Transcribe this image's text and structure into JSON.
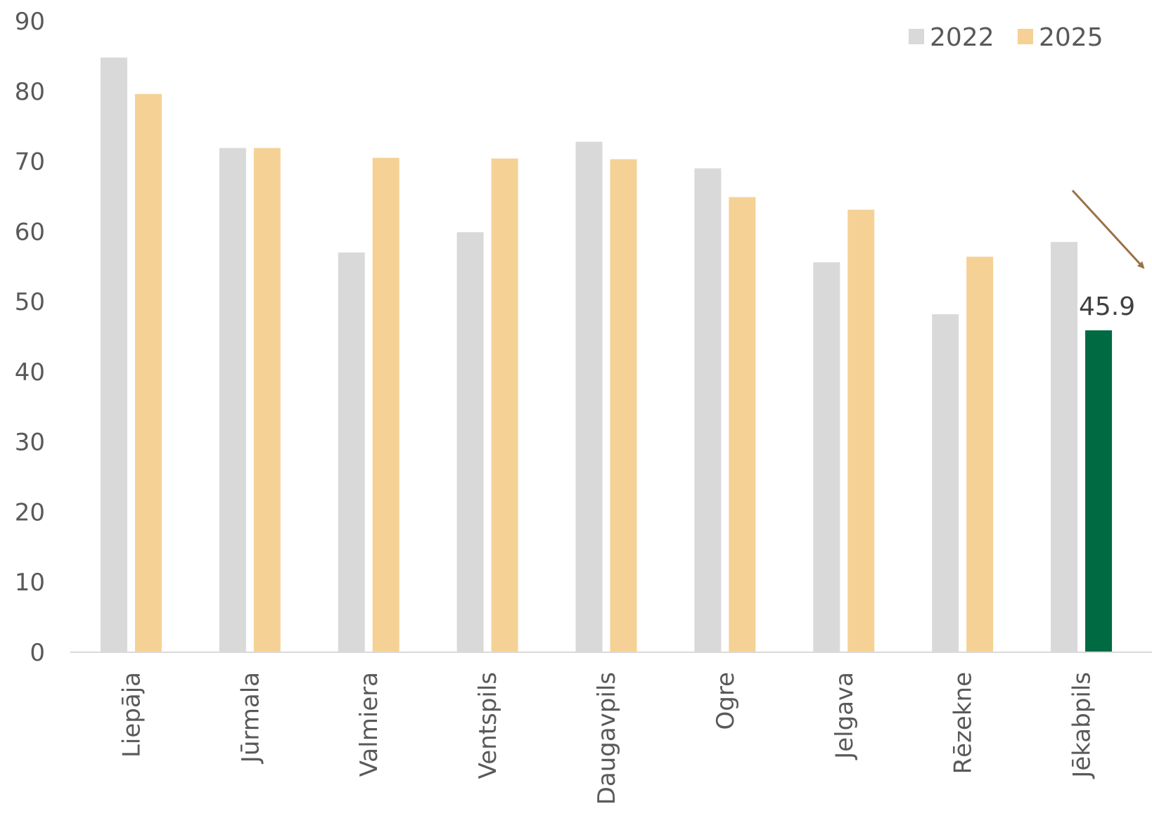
{
  "chart_data": {
    "type": "bar",
    "categories": [
      "Liepāja",
      "Jūrmala",
      "Valmiera",
      "Ventspils",
      "Daugavpils",
      "Ogre",
      "Jelgava",
      "Rēzekne",
      "Jēkabpils"
    ],
    "series": [
      {
        "name": "2022",
        "color": "#d9d9d9",
        "values": [
          84.8,
          71.9,
          57.0,
          59.9,
          72.8,
          69.0,
          55.6,
          48.2,
          58.5
        ]
      },
      {
        "name": "2025",
        "color": "#f5d195",
        "values": [
          79.6,
          71.9,
          70.5,
          70.4,
          70.3,
          64.9,
          63.1,
          56.4,
          45.9
        ]
      }
    ],
    "highlight": {
      "series": "2025",
      "category": "Jēkabpils",
      "color": "#006a43",
      "label": "45.9"
    },
    "annotation": {
      "type": "arrow",
      "color": "#9b7147",
      "direction": "down-right"
    },
    "ylim": [
      0,
      90
    ],
    "yticks": [
      "0",
      "10",
      "20",
      "30",
      "40",
      "50",
      "60",
      "70",
      "80",
      "90"
    ],
    "xlabel": "",
    "ylabel": "",
    "title": "",
    "legend": "top-right",
    "grid": false
  }
}
